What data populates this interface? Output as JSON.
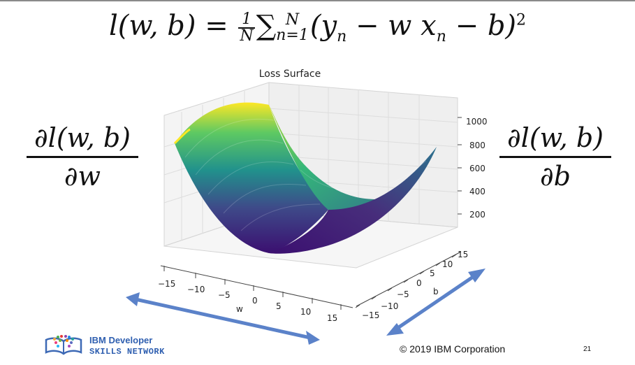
{
  "slide": {
    "equation": "l(w, b) = ¹⁄ₙ Σⁿₙ₌₁(yₙ − w xₙ − b)²",
    "equation_parts": {
      "lhs": "l(w, b) = ",
      "frac_num": "1",
      "frac_den": "N",
      "sum": "∑",
      "sum_sup": "N",
      "sum_sub": "n=1",
      "body": "(y",
      "y_sub": "n",
      "mid": " − w x",
      "x_sub": "n",
      "tail": " − b)",
      "power": "2"
    },
    "left_fraction": {
      "numerator": "∂l(w, b)",
      "denominator": "∂w"
    },
    "right_fraction": {
      "numerator": "∂l(w, b)",
      "denominator": "∂b"
    },
    "plot_title": "Loss Surface",
    "z_ticks": [
      "1000",
      "800",
      "600",
      "400",
      "200"
    ],
    "w_ticks": [
      "−15",
      "−10",
      "−5",
      "0",
      "5",
      "10",
      "15"
    ],
    "b_ticks": [
      "−15",
      "−10",
      "−5",
      "0",
      "5",
      "10",
      "15"
    ],
    "w_label": "w",
    "b_label": "b",
    "logo_line1": "IBM Developer",
    "logo_line2": "SKILLS NETWORK",
    "copyright": "© 2019 IBM Corporation",
    "page_number": "21"
  },
  "colors": {
    "arrow": "#5b82c9",
    "surface_low": "#3b0f70",
    "surface_mid": "#21918c",
    "surface_high": "#fde725"
  }
}
